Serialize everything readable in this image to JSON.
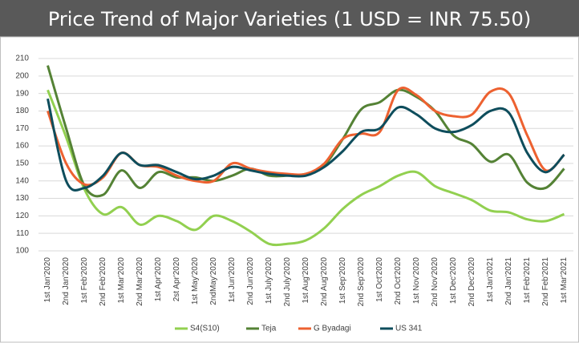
{
  "chart_data": {
    "type": "line",
    "title": "Price Trend of Major Varieties (1 USD = INR 75.50)",
    "categories": [
      "1st Jan'2020",
      "2nd Jan'2020",
      "1st Feb'2020",
      "2nd Feb'2020",
      "1st Mar'2020",
      "2nd Mar'2020",
      "1st Apr'2020",
      "2st Apr'2020",
      "1st May'2020",
      "2ndMay'2020",
      "1st Jun'2020",
      "2nd Jun'2020",
      "1st July'2020",
      "2nd July'2020",
      "1st Aug'2020",
      "2nd Aug'2020",
      "1st Sep'2020",
      "2nd Sep'2020",
      "1st Oct'2020",
      "2nd Oct'2020",
      "1st Nov'2020",
      "2nd Nov'2020",
      "1st Dec'2020",
      "2nd Dec'2020",
      "1st Jan'2021",
      "2nd Jan'2021",
      "1st Feb'2021",
      "2nd Feb'2021",
      "1st Mar'2021"
    ],
    "series": [
      {
        "name": "S4(S10)",
        "color": "#92d050",
        "values": [
          192,
          165,
          135,
          121,
          125,
          115,
          120,
          117,
          112,
          120,
          117,
          111,
          104,
          104,
          106,
          113,
          124,
          132,
          137,
          143,
          145,
          137,
          133,
          129,
          123,
          122,
          118,
          117,
          121
        ]
      },
      {
        "name": "Teja",
        "color": "#548235",
        "values": [
          206,
          170,
          137,
          132,
          146,
          136,
          145,
          142,
          142,
          140,
          143,
          147,
          143,
          143,
          144,
          149,
          164,
          181,
          185,
          192,
          188,
          180,
          166,
          161,
          151,
          155,
          139,
          136,
          147
        ]
      },
      {
        "name": "G Byadagi",
        "color": "#ed6130",
        "values": [
          180,
          150,
          138,
          142,
          156,
          149,
          148,
          143,
          140,
          140,
          150,
          147,
          145,
          144,
          144,
          150,
          164,
          167,
          168,
          192,
          189,
          180,
          177,
          178,
          191,
          190,
          166,
          146,
          155
        ]
      },
      {
        "name": "US 341",
        "color": "#0e4d5c",
        "values": [
          187,
          140,
          136,
          143,
          156,
          149,
          149,
          145,
          141,
          143,
          148,
          146,
          144,
          143,
          143,
          148,
          157,
          168,
          170,
          182,
          178,
          170,
          168,
          172,
          180,
          179,
          156,
          145,
          155
        ]
      }
    ],
    "ylim": [
      100,
      210
    ],
    "yticks": [
      100,
      110,
      120,
      130,
      140,
      150,
      160,
      170,
      180,
      190,
      200,
      210
    ],
    "grid": true
  }
}
